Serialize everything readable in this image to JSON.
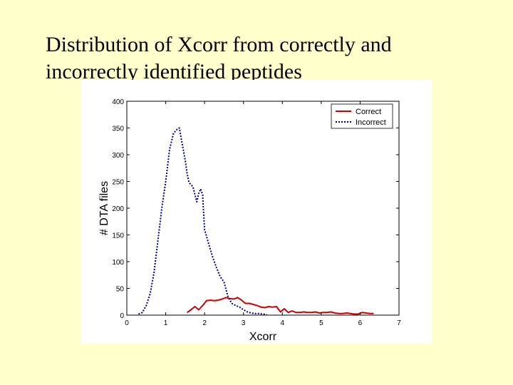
{
  "slide": {
    "title_line1": "Distribution of Xcorr from correctly and",
    "title_line2": "incorrectly identified peptides"
  },
  "colors": {
    "background": "#ffffcc",
    "correct": "#cc0000",
    "incorrect": "#00008b"
  },
  "chart_data": {
    "type": "line",
    "xlabel": "Xcorr",
    "ylabel": "# DTA files",
    "xlim": [
      0,
      7
    ],
    "ylim": [
      0,
      400
    ],
    "xticks": [
      "0",
      "1",
      "2",
      "3",
      "4",
      "5",
      "6",
      "7"
    ],
    "yticks": [
      "0",
      "50",
      "100",
      "150",
      "200",
      "250",
      "300",
      "350",
      "400"
    ],
    "grid": false,
    "legend_position": "top-right",
    "series": [
      {
        "name": "Correct",
        "color": "#cc0000",
        "line_style": "solid",
        "x": [
          1.55,
          1.65,
          1.75,
          1.85,
          1.95,
          2.05,
          2.15,
          2.25,
          2.35,
          2.45,
          2.55,
          2.65,
          2.75,
          2.85,
          2.95,
          3.05,
          3.15,
          3.25,
          3.35,
          3.45,
          3.55,
          3.65,
          3.75,
          3.85,
          3.95,
          4.05,
          4.15,
          4.25,
          4.35,
          4.45,
          4.55,
          4.65,
          4.75,
          4.85,
          4.95,
          5.05,
          5.15,
          5.25,
          5.35,
          5.45,
          5.55,
          5.65,
          5.75,
          5.85,
          5.95,
          6.05,
          6.15,
          6.25,
          6.35
        ],
        "y": [
          5,
          10,
          16,
          10,
          18,
          27,
          28,
          27,
          28,
          30,
          33,
          31,
          30,
          33,
          28,
          22,
          22,
          20,
          18,
          15,
          14,
          16,
          15,
          16,
          6,
          12,
          5,
          8,
          5,
          5,
          6,
          5,
          5,
          6,
          4,
          5,
          5,
          6,
          4,
          3,
          3,
          4,
          3,
          2,
          2,
          5,
          4,
          3,
          3
        ]
      },
      {
        "name": "Incorrect",
        "color": "#00008b",
        "line_style": "dotted",
        "x": [
          0.3,
          0.4,
          0.5,
          0.6,
          0.7,
          0.8,
          0.9,
          1.0,
          1.1,
          1.2,
          1.3,
          1.35,
          1.4,
          1.5,
          1.55,
          1.6,
          1.7,
          1.8,
          1.85,
          1.9,
          1.95,
          2.0,
          2.1,
          2.2,
          2.3,
          2.4,
          2.5,
          2.6,
          2.7,
          2.8,
          2.9,
          3.0,
          3.1,
          3.2,
          3.3,
          3.4,
          3.5,
          3.6
        ],
        "y": [
          2,
          5,
          18,
          40,
          80,
          140,
          200,
          250,
          310,
          340,
          348,
          350,
          330,
          290,
          265,
          248,
          240,
          212,
          228,
          236,
          225,
          160,
          135,
          110,
          90,
          72,
          62,
          35,
          22,
          18,
          15,
          10,
          6,
          4,
          3,
          3,
          2,
          1
        ]
      }
    ]
  }
}
